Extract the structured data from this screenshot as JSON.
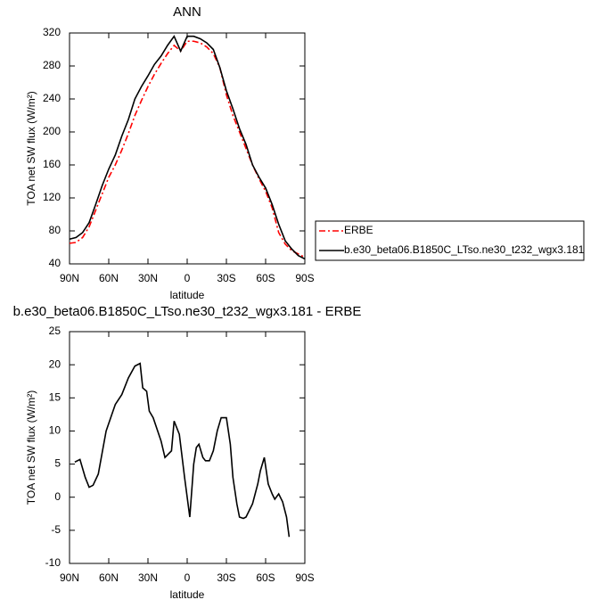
{
  "chart_data": [
    {
      "type": "line",
      "title": "ANN",
      "x_label": "latitude",
      "y_label": "TOA net SW flux (W/m²)",
      "x": [
        90,
        85,
        80,
        75,
        70,
        65,
        60,
        55,
        50,
        45,
        40,
        35,
        30,
        25,
        20,
        15,
        10,
        5,
        0,
        -5,
        -10,
        -15,
        -20,
        -25,
        -30,
        -35,
        -40,
        -45,
        -50,
        -55,
        -60,
        -65,
        -70,
        -75,
        -80,
        -85,
        -90
      ],
      "series": [
        {
          "name": "ERBE",
          "color": "#ff0000",
          "dashed": true,
          "values": [
            65,
            66,
            72,
            85,
            105,
            125,
            145,
            160,
            178,
            198,
            220,
            238,
            255,
            270,
            283,
            295,
            305,
            298,
            310,
            310,
            308,
            303,
            295,
            278,
            245,
            220,
            200,
            180,
            160,
            143,
            128,
            108,
            78,
            64,
            56,
            52,
            48
          ]
        },
        {
          "name": "b.e30_beta06.B1850C_LTso.ne30_t232_wgx3.181",
          "color": "#000000",
          "dashed": false,
          "values": [
            70,
            72,
            78,
            90,
            112,
            135,
            155,
            172,
            195,
            215,
            240,
            255,
            268,
            282,
            292,
            305,
            316,
            298,
            316,
            316,
            313,
            308,
            300,
            278,
            250,
            228,
            204,
            185,
            160,
            145,
            132,
            112,
            88,
            68,
            58,
            50,
            46
          ]
        }
      ],
      "xlim": [
        90,
        -90
      ],
      "xticks": [
        {
          "value": 90,
          "label": "90N"
        },
        {
          "value": 60,
          "label": "60N"
        },
        {
          "value": 30,
          "label": "30N"
        },
        0,
        {
          "value": -30,
          "label": "30S"
        },
        {
          "value": -60,
          "label": "60S"
        },
        {
          "value": -90,
          "label": "90S"
        }
      ],
      "ylim": [
        40,
        320
      ],
      "yticks": [
        40,
        80,
        120,
        160,
        200,
        240,
        280,
        320
      ]
    },
    {
      "type": "line",
      "title": "b.e30_beta06.B1850C_LTso.ne30_t232_wgx3.181 - ERBE",
      "x_label": "latitude",
      "y_label": "TOA net SW flux (W/m²)",
      "x": [
        86,
        82,
        78,
        75,
        72,
        68,
        62,
        55,
        50,
        45,
        40,
        36,
        34,
        31,
        29,
        26,
        20,
        17,
        12,
        10,
        6,
        2,
        -2,
        -5,
        -7,
        -9,
        -12,
        -14,
        -17,
        -20,
        -23,
        -26,
        -30,
        -33,
        -35,
        -38,
        -40,
        -43,
        -45,
        -50,
        -54,
        -56,
        -59,
        -62,
        -65,
        -67,
        -70,
        -73,
        -76,
        -78
      ],
      "values": [
        5.3,
        5.7,
        3,
        1.5,
        1.8,
        3.5,
        10,
        14,
        15.5,
        18,
        19.8,
        20.2,
        16.5,
        16,
        13,
        12,
        8.5,
        6,
        7,
        11.5,
        9.5,
        3,
        -3,
        5,
        7.5,
        8,
        6,
        5.5,
        5.5,
        7,
        10,
        12,
        12,
        8,
        3,
        -1,
        -3,
        -3.2,
        -3,
        -1,
        2,
        4,
        6,
        2,
        0.5,
        -0.3,
        0.5,
        -0.7,
        -3,
        -6
      ],
      "color": "#000000",
      "xlim": [
        90,
        -90
      ],
      "xticks": [
        {
          "value": 90,
          "label": "90N"
        },
        {
          "value": 60,
          "label": "60N"
        },
        {
          "value": 30,
          "label": "30N"
        },
        0,
        {
          "value": -30,
          "label": "30S"
        },
        {
          "value": -60,
          "label": "60S"
        },
        {
          "value": -90,
          "label": "90S"
        }
      ],
      "ylim": [
        -10,
        25
      ],
      "yticks": [
        -10,
        -5,
        0,
        5,
        10,
        15,
        20,
        25
      ]
    }
  ]
}
